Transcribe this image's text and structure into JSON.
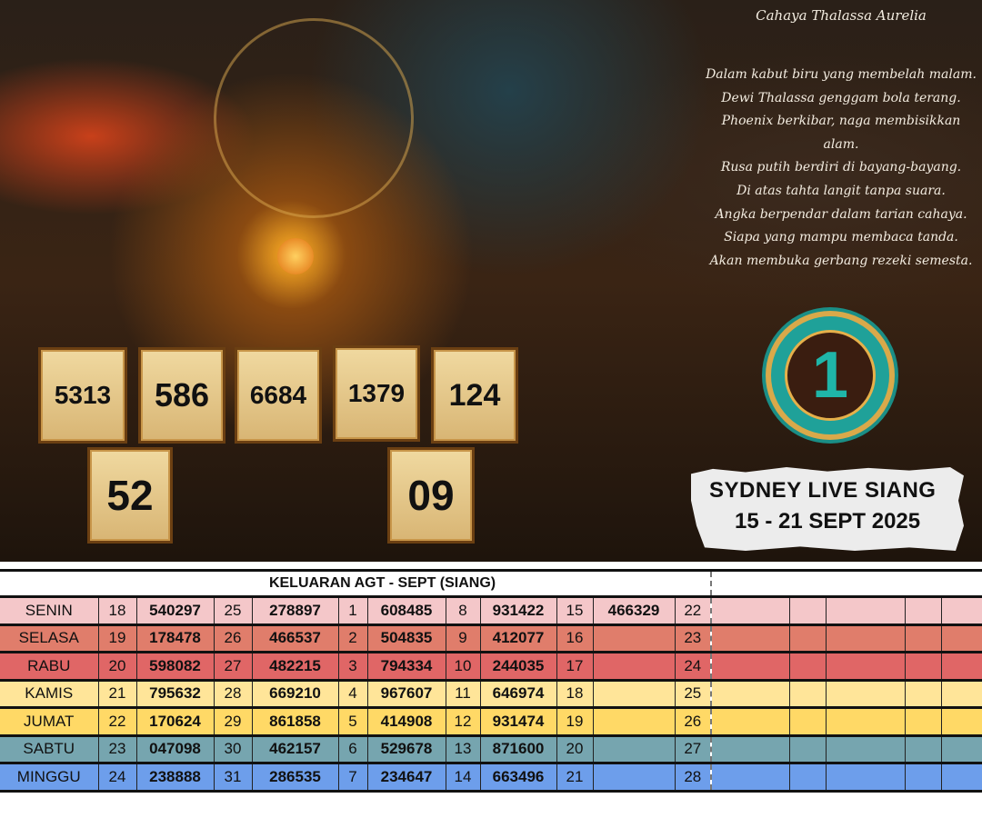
{
  "poem": {
    "title": "Cahaya Thalassa Aurelia",
    "lines": [
      "Dalam kabut biru yang membelah malam.",
      "Dewi Thalassa genggam bola terang.",
      "Phoenix berkibar, naga membisikkan alam.",
      "Rusa putih berdiri di bayang-bayang.",
      "Di atas tahta langit tanpa suara.",
      "Angka berpendar dalam tarian cahaya.",
      "Siapa yang mampu membaca tanda.",
      "Akan membuka gerbang rezeki semesta."
    ]
  },
  "predictions": {
    "tiles": [
      "5313",
      "586",
      "6684",
      "1379",
      "124"
    ],
    "two_digit": [
      "52",
      "09"
    ]
  },
  "badge": {
    "number": "1"
  },
  "banner": {
    "line1": "SYDNEY LIVE SIANG",
    "line2": "15 - 21 SEPT 2025"
  },
  "table": {
    "title": "KELUARAN AGT - SEPT (SIANG)",
    "rows": [
      {
        "day": "SENIN",
        "color": "#f4c7c9",
        "cells": [
          "18",
          "540297",
          "25",
          "278897",
          "1",
          "608485",
          "8",
          "931422",
          "15",
          "466329",
          "22"
        ]
      },
      {
        "day": "SELASA",
        "color": "#e07d6b",
        "cells": [
          "19",
          "178478",
          "26",
          "466537",
          "2",
          "504835",
          "9",
          "412077",
          "16",
          "",
          "23"
        ]
      },
      {
        "day": "RABU",
        "color": "#e06666",
        "cells": [
          "20",
          "598082",
          "27",
          "482215",
          "3",
          "794334",
          "10",
          "244035",
          "17",
          "",
          "24"
        ]
      },
      {
        "day": "KAMIS",
        "color": "#ffe599",
        "cells": [
          "21",
          "795632",
          "28",
          "669210",
          "4",
          "967607",
          "11",
          "646974",
          "18",
          "",
          "25"
        ]
      },
      {
        "day": "JUMAT",
        "color": "#ffd966",
        "cells": [
          "22",
          "170624",
          "29",
          "861858",
          "5",
          "414908",
          "12",
          "931474",
          "19",
          "",
          "26"
        ]
      },
      {
        "day": "SABTU",
        "color": "#76a5af",
        "cells": [
          "23",
          "047098",
          "30",
          "462157",
          "6",
          "529678",
          "13",
          "871600",
          "20",
          "",
          "27"
        ]
      },
      {
        "day": "MINGGU",
        "color": "#6d9eeb",
        "cells": [
          "24",
          "238888",
          "31",
          "286535",
          "7",
          "234647",
          "14",
          "663496",
          "21",
          "",
          "28"
        ]
      }
    ]
  }
}
